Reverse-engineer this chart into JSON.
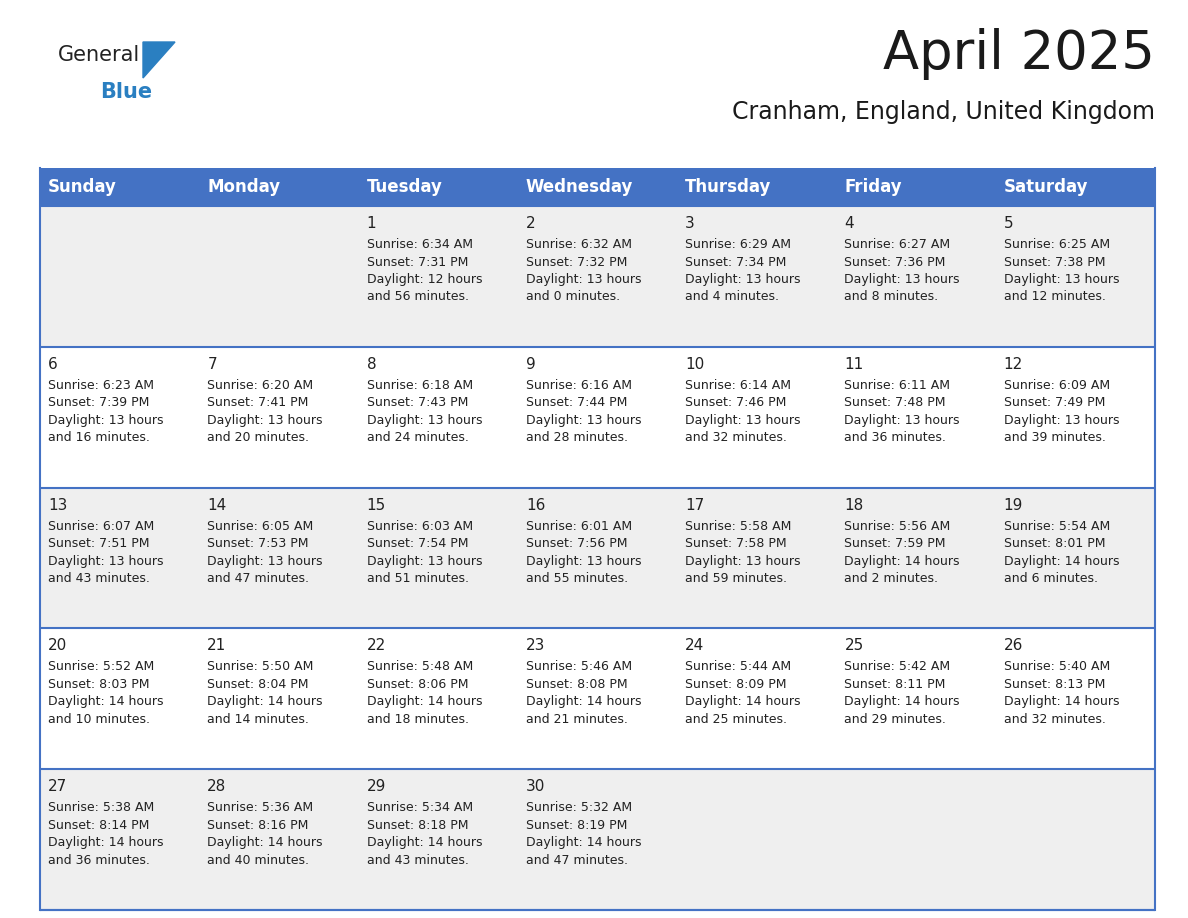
{
  "title": "April 2025",
  "subtitle": "Cranham, England, United Kingdom",
  "header_color": "#4472C4",
  "header_text_color": "#ffffff",
  "cell_bg_light": "#efefef",
  "cell_bg_white": "#ffffff",
  "border_color": "#4472C4",
  "text_color": "#222222",
  "day_names": [
    "Sunday",
    "Monday",
    "Tuesday",
    "Wednesday",
    "Thursday",
    "Friday",
    "Saturday"
  ],
  "title_fontsize": 38,
  "subtitle_fontsize": 17,
  "header_fontsize": 12,
  "day_num_fontsize": 11,
  "cell_fontsize": 9,
  "logo_general_color": "#222222",
  "logo_blue_color": "#2a7fc1",
  "logo_triangle_color": "#2a7fc1",
  "calendar": [
    [
      {
        "day": "",
        "sunrise": "",
        "sunset": "",
        "daylight": ""
      },
      {
        "day": "",
        "sunrise": "",
        "sunset": "",
        "daylight": ""
      },
      {
        "day": "1",
        "sunrise": "Sunrise: 6:34 AM",
        "sunset": "Sunset: 7:31 PM",
        "daylight": "Daylight: 12 hours\nand 56 minutes."
      },
      {
        "day": "2",
        "sunrise": "Sunrise: 6:32 AM",
        "sunset": "Sunset: 7:32 PM",
        "daylight": "Daylight: 13 hours\nand 0 minutes."
      },
      {
        "day": "3",
        "sunrise": "Sunrise: 6:29 AM",
        "sunset": "Sunset: 7:34 PM",
        "daylight": "Daylight: 13 hours\nand 4 minutes."
      },
      {
        "day": "4",
        "sunrise": "Sunrise: 6:27 AM",
        "sunset": "Sunset: 7:36 PM",
        "daylight": "Daylight: 13 hours\nand 8 minutes."
      },
      {
        "day": "5",
        "sunrise": "Sunrise: 6:25 AM",
        "sunset": "Sunset: 7:38 PM",
        "daylight": "Daylight: 13 hours\nand 12 minutes."
      }
    ],
    [
      {
        "day": "6",
        "sunrise": "Sunrise: 6:23 AM",
        "sunset": "Sunset: 7:39 PM",
        "daylight": "Daylight: 13 hours\nand 16 minutes."
      },
      {
        "day": "7",
        "sunrise": "Sunrise: 6:20 AM",
        "sunset": "Sunset: 7:41 PM",
        "daylight": "Daylight: 13 hours\nand 20 minutes."
      },
      {
        "day": "8",
        "sunrise": "Sunrise: 6:18 AM",
        "sunset": "Sunset: 7:43 PM",
        "daylight": "Daylight: 13 hours\nand 24 minutes."
      },
      {
        "day": "9",
        "sunrise": "Sunrise: 6:16 AM",
        "sunset": "Sunset: 7:44 PM",
        "daylight": "Daylight: 13 hours\nand 28 minutes."
      },
      {
        "day": "10",
        "sunrise": "Sunrise: 6:14 AM",
        "sunset": "Sunset: 7:46 PM",
        "daylight": "Daylight: 13 hours\nand 32 minutes."
      },
      {
        "day": "11",
        "sunrise": "Sunrise: 6:11 AM",
        "sunset": "Sunset: 7:48 PM",
        "daylight": "Daylight: 13 hours\nand 36 minutes."
      },
      {
        "day": "12",
        "sunrise": "Sunrise: 6:09 AM",
        "sunset": "Sunset: 7:49 PM",
        "daylight": "Daylight: 13 hours\nand 39 minutes."
      }
    ],
    [
      {
        "day": "13",
        "sunrise": "Sunrise: 6:07 AM",
        "sunset": "Sunset: 7:51 PM",
        "daylight": "Daylight: 13 hours\nand 43 minutes."
      },
      {
        "day": "14",
        "sunrise": "Sunrise: 6:05 AM",
        "sunset": "Sunset: 7:53 PM",
        "daylight": "Daylight: 13 hours\nand 47 minutes."
      },
      {
        "day": "15",
        "sunrise": "Sunrise: 6:03 AM",
        "sunset": "Sunset: 7:54 PM",
        "daylight": "Daylight: 13 hours\nand 51 minutes."
      },
      {
        "day": "16",
        "sunrise": "Sunrise: 6:01 AM",
        "sunset": "Sunset: 7:56 PM",
        "daylight": "Daylight: 13 hours\nand 55 minutes."
      },
      {
        "day": "17",
        "sunrise": "Sunrise: 5:58 AM",
        "sunset": "Sunset: 7:58 PM",
        "daylight": "Daylight: 13 hours\nand 59 minutes."
      },
      {
        "day": "18",
        "sunrise": "Sunrise: 5:56 AM",
        "sunset": "Sunset: 7:59 PM",
        "daylight": "Daylight: 14 hours\nand 2 minutes."
      },
      {
        "day": "19",
        "sunrise": "Sunrise: 5:54 AM",
        "sunset": "Sunset: 8:01 PM",
        "daylight": "Daylight: 14 hours\nand 6 minutes."
      }
    ],
    [
      {
        "day": "20",
        "sunrise": "Sunrise: 5:52 AM",
        "sunset": "Sunset: 8:03 PM",
        "daylight": "Daylight: 14 hours\nand 10 minutes."
      },
      {
        "day": "21",
        "sunrise": "Sunrise: 5:50 AM",
        "sunset": "Sunset: 8:04 PM",
        "daylight": "Daylight: 14 hours\nand 14 minutes."
      },
      {
        "day": "22",
        "sunrise": "Sunrise: 5:48 AM",
        "sunset": "Sunset: 8:06 PM",
        "daylight": "Daylight: 14 hours\nand 18 minutes."
      },
      {
        "day": "23",
        "sunrise": "Sunrise: 5:46 AM",
        "sunset": "Sunset: 8:08 PM",
        "daylight": "Daylight: 14 hours\nand 21 minutes."
      },
      {
        "day": "24",
        "sunrise": "Sunrise: 5:44 AM",
        "sunset": "Sunset: 8:09 PM",
        "daylight": "Daylight: 14 hours\nand 25 minutes."
      },
      {
        "day": "25",
        "sunrise": "Sunrise: 5:42 AM",
        "sunset": "Sunset: 8:11 PM",
        "daylight": "Daylight: 14 hours\nand 29 minutes."
      },
      {
        "day": "26",
        "sunrise": "Sunrise: 5:40 AM",
        "sunset": "Sunset: 8:13 PM",
        "daylight": "Daylight: 14 hours\nand 32 minutes."
      }
    ],
    [
      {
        "day": "27",
        "sunrise": "Sunrise: 5:38 AM",
        "sunset": "Sunset: 8:14 PM",
        "daylight": "Daylight: 14 hours\nand 36 minutes."
      },
      {
        "day": "28",
        "sunrise": "Sunrise: 5:36 AM",
        "sunset": "Sunset: 8:16 PM",
        "daylight": "Daylight: 14 hours\nand 40 minutes."
      },
      {
        "day": "29",
        "sunrise": "Sunrise: 5:34 AM",
        "sunset": "Sunset: 8:18 PM",
        "daylight": "Daylight: 14 hours\nand 43 minutes."
      },
      {
        "day": "30",
        "sunrise": "Sunrise: 5:32 AM",
        "sunset": "Sunset: 8:19 PM",
        "daylight": "Daylight: 14 hours\nand 47 minutes."
      },
      {
        "day": "",
        "sunrise": "",
        "sunset": "",
        "daylight": ""
      },
      {
        "day": "",
        "sunrise": "",
        "sunset": "",
        "daylight": ""
      },
      {
        "day": "",
        "sunrise": "",
        "sunset": "",
        "daylight": ""
      }
    ]
  ]
}
